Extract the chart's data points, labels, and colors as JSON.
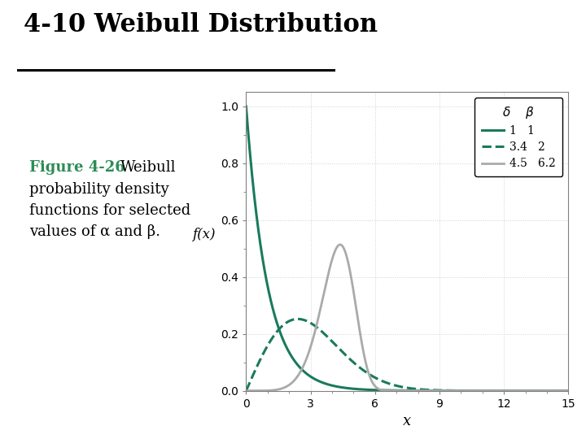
{
  "title": "4-10 Weibull Distribution",
  "title_fontsize": 22,
  "title_color": "#000000",
  "figure_caption_green": "Figure 4-26",
  "caption_color": "#2e8b57",
  "caption_rest_line1": " Weibull",
  "caption_rest_lines": "probability density\nfunctions for selected\nvalues of α and β.",
  "caption_fontsize": 13,
  "ylabel": "f(x)",
  "xlabel": "x",
  "xlim": [
    0,
    15
  ],
  "ylim": [
    0,
    1.05
  ],
  "xticks": [
    0,
    3,
    6,
    9,
    12,
    15
  ],
  "yticks": [
    0.0,
    0.2,
    0.4,
    0.6,
    0.8,
    1.0
  ],
  "curves": [
    {
      "delta": 1.0,
      "beta": 1.0,
      "color": "#1a7a5e",
      "linestyle": "solid",
      "linewidth": 2.2
    },
    {
      "delta": 3.4,
      "beta": 2.0,
      "color": "#1a7a5e",
      "linestyle": "dashed",
      "linewidth": 2.2
    },
    {
      "delta": 4.5,
      "beta": 6.2,
      "color": "#aaaaaa",
      "linestyle": "solid",
      "linewidth": 2.0
    }
  ],
  "background_color": "#ffffff",
  "plot_bg_color": "#ffffff",
  "grid_color": "#cccccc"
}
